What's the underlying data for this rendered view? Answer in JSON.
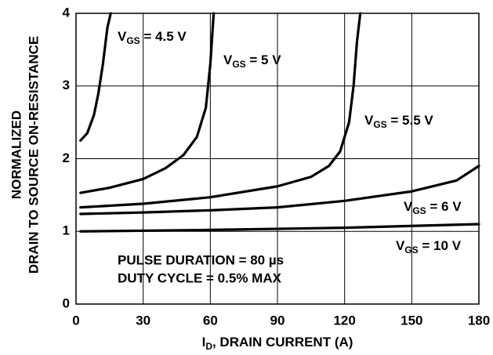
{
  "chart_data": {
    "type": "line",
    "xlabel": "ID, DRAIN CURRENT (A)",
    "ylabel": [
      "NORMALIZED",
      "DRAIN TO SOURCE ON-RESISTANCE"
    ],
    "annotations": [
      "PULSE DURATION = 80 µs",
      "DUTY CYCLE = 0.5% MAX"
    ],
    "xlim": [
      0,
      180
    ],
    "xticks": [
      0,
      30,
      60,
      90,
      120,
      150,
      180
    ],
    "ylim": [
      0,
      4
    ],
    "yticks": [
      0,
      1,
      2,
      3,
      4
    ],
    "grid": true,
    "series": [
      {
        "name": "VGS = 4.5 V",
        "color": "#000000",
        "x": [
          2,
          5,
          8,
          10,
          12,
          14,
          15.5
        ],
        "values": [
          2.25,
          2.35,
          2.6,
          2.9,
          3.3,
          3.8,
          4.0
        ]
      },
      {
        "name": "VGS = 5 V",
        "color": "#000000",
        "x": [
          2,
          15,
          30,
          40,
          48,
          54,
          58,
          60,
          61.5
        ],
        "values": [
          1.53,
          1.6,
          1.72,
          1.87,
          2.05,
          2.3,
          2.7,
          3.3,
          4.0
        ]
      },
      {
        "name": "VGS = 5.5 V",
        "color": "#000000",
        "x": [
          2,
          30,
          60,
          90,
          105,
          113,
          118,
          122,
          124,
          125.5,
          127
        ],
        "values": [
          1.33,
          1.38,
          1.47,
          1.62,
          1.75,
          1.9,
          2.1,
          2.5,
          3.0,
          3.6,
          4.0
        ]
      },
      {
        "name": "VGS = 6 V",
        "color": "#000000",
        "x": [
          2,
          30,
          60,
          90,
          120,
          150,
          170,
          180
        ],
        "values": [
          1.24,
          1.26,
          1.29,
          1.33,
          1.42,
          1.55,
          1.7,
          1.9
        ]
      },
      {
        "name": "VGS = 10 V",
        "color": "#000000",
        "x": [
          2,
          60,
          120,
          180
        ],
        "values": [
          1.0,
          1.02,
          1.05,
          1.1
        ]
      }
    ]
  }
}
